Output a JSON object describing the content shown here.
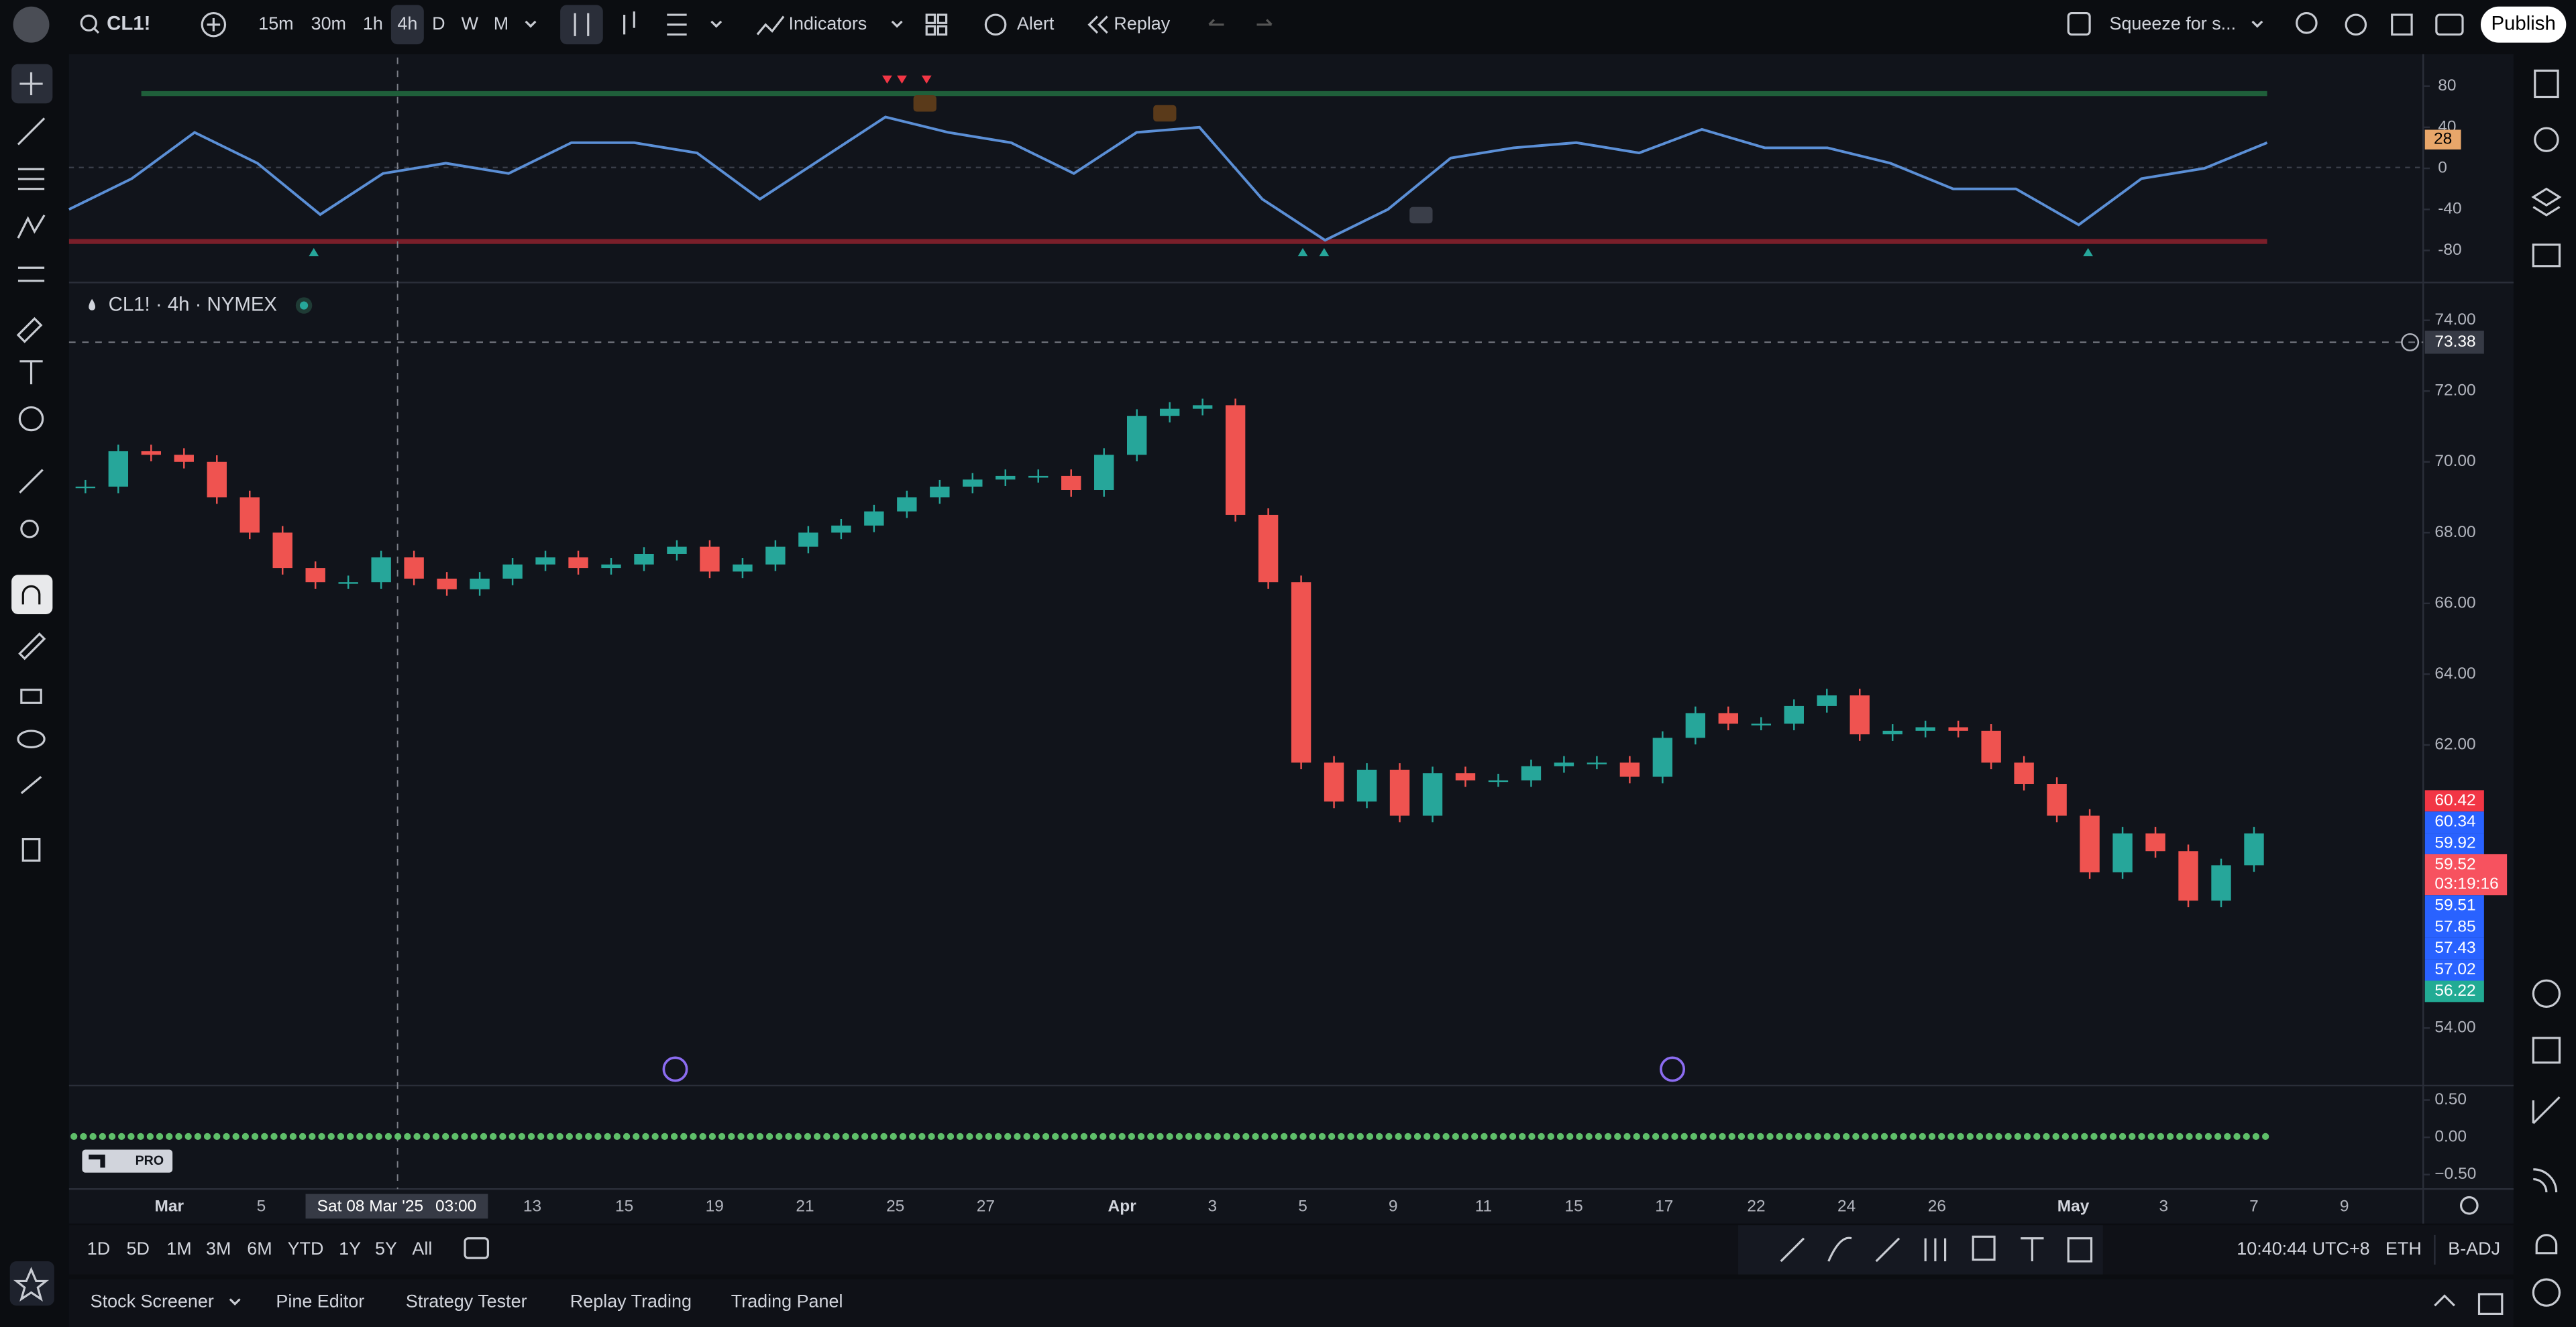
{
  "toolbar": {
    "symbol": "CL1!",
    "intervals": [
      "15m",
      "30m",
      "1h",
      "4h",
      "D",
      "W",
      "M"
    ],
    "active_interval_index": 3,
    "indicators": "Indicators",
    "alert": "Alert",
    "replay": "Replay",
    "layout": "Squeeze for s...",
    "publish": "Publish"
  },
  "oscillator": {
    "ylim": [
      -108,
      108
    ],
    "yticks": [
      80,
      40,
      0,
      -40,
      -80
    ],
    "last_value": 28,
    "color": "#5b8fd6",
    "last_color": "#e8a66a",
    "values": [
      -40,
      -10,
      35,
      5,
      -45,
      -5,
      5,
      -5,
      25,
      25,
      15,
      -30,
      10,
      50,
      35,
      25,
      -5,
      35,
      40,
      -30,
      -70,
      -40,
      10,
      20,
      25,
      15,
      38,
      20,
      20,
      5,
      -20,
      -20,
      -55,
      -10,
      0,
      25
    ]
  },
  "price_chart": {
    "legend": "CL1! · 4h · NYMEX",
    "ylim": [
      52.42,
      74.93
    ],
    "yticks": [
      {
        "value": 74,
        "label": "74.00"
      },
      {
        "value": 72,
        "label": "72.00"
      },
      {
        "value": 70,
        "label": "70.00"
      },
      {
        "value": 68,
        "label": "68.00"
      },
      {
        "value": 66,
        "label": "66.00"
      },
      {
        "value": 64,
        "label": "64.00"
      },
      {
        "value": 62,
        "label": "62.00"
      },
      {
        "value": 54,
        "label": "54.00"
      }
    ],
    "crosshair": {
      "value": 73.38,
      "label": "73.38"
    },
    "price_labels": [
      {
        "value": 60.42,
        "label": "60.42",
        "color": "#f23645"
      },
      {
        "value": 60.34,
        "label": "60.34",
        "color": "#2962ff"
      },
      {
        "value": 59.92,
        "label": "59.92",
        "color": "#2962ff"
      },
      {
        "value": 59.52,
        "label": "59.52",
        "color": "#f7525f",
        "countdown": "03:19:16"
      },
      {
        "value": 59.51,
        "label": "59.51",
        "color": "#2962ff"
      },
      {
        "value": 57.85,
        "label": "57.85",
        "color": "#2962ff"
      },
      {
        "value": 57.43,
        "label": "57.43",
        "color": "#2962ff"
      },
      {
        "value": 57.02,
        "label": "57.02",
        "color": "#2962ff"
      },
      {
        "value": 56.22,
        "label": "56.22",
        "color": "#22ab94"
      }
    ],
    "up_color": "#26a69a",
    "down_color": "#ef5350",
    "closes": [
      69.3,
      70.3,
      70.2,
      70.0,
      69.0,
      68.0,
      67.0,
      66.6,
      66.6,
      67.3,
      66.7,
      66.4,
      66.7,
      67.1,
      67.3,
      67.0,
      67.1,
      67.4,
      67.6,
      66.9,
      67.1,
      67.6,
      68.0,
      68.2,
      68.6,
      69.0,
      69.3,
      69.5,
      69.6,
      69.6,
      69.2,
      70.2,
      71.3,
      71.5,
      71.6,
      68.5,
      66.6,
      61.5,
      60.4,
      61.3,
      60.0,
      61.2,
      61.0,
      61.0,
      61.4,
      61.5,
      61.5,
      61.1,
      62.2,
      62.9,
      62.6,
      62.6,
      63.1,
      63.4,
      62.3,
      62.4,
      62.5,
      62.4,
      61.5,
      60.9,
      60.0,
      58.4,
      59.5,
      59.0,
      57.6,
      58.6,
      59.5
    ]
  },
  "bottom_pane": {
    "ylim": [
      -0.65,
      0.65
    ],
    "yticks": [
      {
        "value": 0.5,
        "label": "0.50"
      },
      {
        "value": 0,
        "label": "0.00"
      },
      {
        "value": -0.5,
        "label": "−0.50"
      }
    ]
  },
  "logo_badge": "PRO",
  "time_axis": {
    "labels": [
      "Mar",
      "5",
      "13",
      "15",
      "19",
      "21",
      "25",
      "27",
      "Apr",
      "3",
      "5",
      "9",
      "11",
      "15",
      "17",
      "22",
      "24",
      "26",
      "May",
      "3",
      "7",
      "9"
    ],
    "crosshair_date": "Sat 08 Mar '25",
    "crosshair_time": "03:00"
  },
  "range_bar": [
    "1D",
    "5D",
    "1M",
    "3M",
    "6M",
    "YTD",
    "1Y",
    "5Y",
    "All"
  ],
  "status": {
    "time": "10:40:44 UTC+8",
    "session": "ETH",
    "adjust": "B-ADJ"
  },
  "footer_tabs": [
    "Stock Screener",
    "Pine Editor",
    "Strategy Tester",
    "Replay Trading",
    "Trading Panel"
  ]
}
